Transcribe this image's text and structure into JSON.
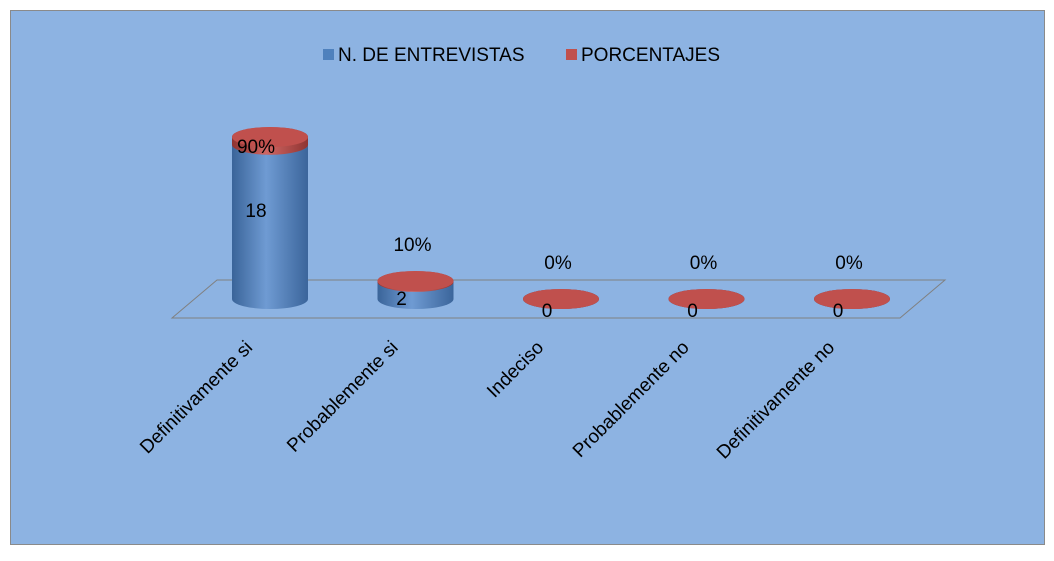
{
  "chart_data": {
    "type": "cylinder",
    "categories": [
      "Definitivamente si",
      "Probablemente si",
      "Indeciso",
      "Probablemente no",
      "Definitivamente no"
    ],
    "series": [
      {
        "name": "N. DE ENTREVISTAS",
        "color": "#4f81bd",
        "values": [
          18,
          2,
          0,
          0,
          0
        ]
      },
      {
        "name": "PORCENTAJES",
        "color": "#c0504d",
        "values": [
          0.9,
          0.1,
          0,
          0,
          0
        ],
        "value_labels": [
          "90%",
          "10%",
          "0%",
          "0%",
          "0%"
        ]
      }
    ],
    "stacked": true,
    "legend": "top"
  }
}
